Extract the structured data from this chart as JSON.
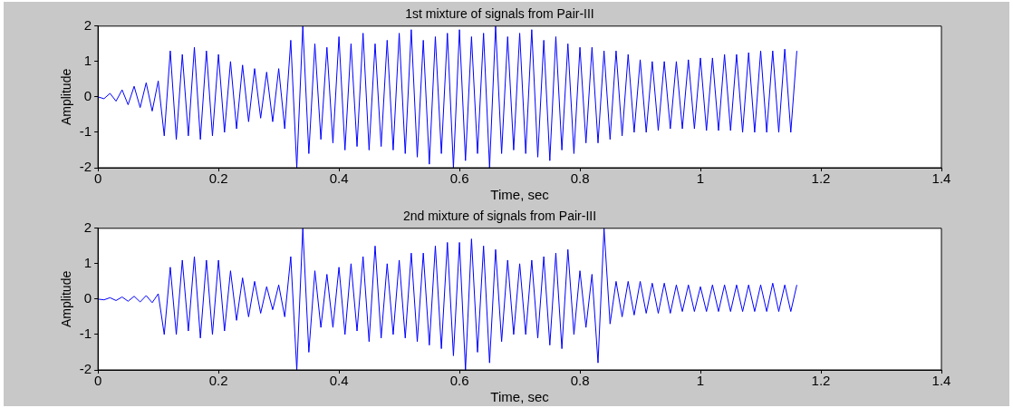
{
  "chart_data": [
    {
      "type": "line",
      "title": "1st mixture of signals from Pair-III",
      "xlabel": "Time, sec",
      "ylabel": "Amplitude",
      "xlim": [
        0,
        1.4
      ],
      "xticks": [
        0,
        0.2,
        0.4,
        0.6,
        0.8,
        1,
        1.2,
        1.4
      ],
      "ylim": [
        -2,
        2
      ],
      "yticks": [
        -2,
        -1,
        0,
        1,
        2
      ],
      "series": [
        {
          "color": "#0000ff",
          "x": [
            0,
            0.01,
            0.02,
            0.03,
            0.04,
            0.05,
            0.06,
            0.07,
            0.08,
            0.09,
            0.1,
            0.11,
            0.12,
            0.13,
            0.14,
            0.15,
            0.16,
            0.17,
            0.18,
            0.19,
            0.2,
            0.21,
            0.22,
            0.23,
            0.24,
            0.25,
            0.26,
            0.27,
            0.28,
            0.29,
            0.3,
            0.31,
            0.32,
            0.33,
            0.34,
            0.35,
            0.36,
            0.37,
            0.38,
            0.39,
            0.4,
            0.41,
            0.42,
            0.43,
            0.44,
            0.45,
            0.46,
            0.47,
            0.48,
            0.49,
            0.5,
            0.51,
            0.52,
            0.53,
            0.54,
            0.55,
            0.56,
            0.57,
            0.58,
            0.59,
            0.6,
            0.61,
            0.62,
            0.63,
            0.64,
            0.65,
            0.66,
            0.67,
            0.68,
            0.69,
            0.7,
            0.71,
            0.72,
            0.73,
            0.74,
            0.75,
            0.76,
            0.77,
            0.78,
            0.79,
            0.8,
            0.81,
            0.82,
            0.83,
            0.84,
            0.85,
            0.86,
            0.87,
            0.88,
            0.89,
            0.9,
            0.91,
            0.92,
            0.93,
            0.94,
            0.95,
            0.96,
            0.97,
            0.98,
            0.99,
            1,
            1.01,
            1.02,
            1.03,
            1.04,
            1.05,
            1.06,
            1.07,
            1.08,
            1.09,
            1.1,
            1.11,
            1.12,
            1.13,
            1.14,
            1.15,
            1.16
          ],
          "values": [
            0,
            -0.05,
            0.1,
            -0.12,
            0.2,
            -0.22,
            0.3,
            -0.3,
            0.4,
            -0.4,
            0.45,
            -1.1,
            1.3,
            -1.2,
            1.2,
            -1.1,
            1.4,
            -1.2,
            1.3,
            -1.1,
            1.2,
            -1,
            1,
            -0.9,
            0.9,
            -0.7,
            0.8,
            -0.6,
            0.7,
            -0.7,
            0.8,
            -0.9,
            1.6,
            -2,
            2,
            -1.6,
            1.5,
            -1.2,
            1.4,
            -1.3,
            1.7,
            -1.5,
            1.5,
            -1.4,
            1.8,
            -1.5,
            1.5,
            -1.4,
            1.6,
            -1.5,
            1.8,
            -1.6,
            1.9,
            -1.7,
            1.6,
            -1.9,
            1.7,
            -1.6,
            1.8,
            -2,
            1.9,
            -1.8,
            1.7,
            -1.6,
            1.8,
            -2,
            2,
            -1.6,
            1.7,
            -1.5,
            1.8,
            -1.6,
            1.9,
            -1.7,
            1.6,
            -1.8,
            1.7,
            -1.5,
            1.5,
            -1.6,
            1.4,
            -1.3,
            1.4,
            -1.3,
            1.3,
            -1.2,
            1.3,
            -1.1,
            1.2,
            -1,
            1.05,
            -1,
            1,
            -0.95,
            1,
            -0.9,
            1,
            -0.9,
            1.05,
            -0.9,
            1.1,
            -0.95,
            1.1,
            -0.95,
            1.2,
            -0.95,
            1.2,
            -1,
            1.25,
            -1,
            1.3,
            -1,
            1.3,
            -1,
            1.35,
            -1,
            1.3
          ]
        }
      ]
    },
    {
      "type": "line",
      "title": "2nd mixture of signals from Pair-III",
      "xlabel": "Time, sec",
      "ylabel": "Amplitude",
      "xlim": [
        0,
        1.4
      ],
      "xticks": [
        0,
        0.2,
        0.4,
        0.6,
        0.8,
        1,
        1.2,
        1.4
      ],
      "ylim": [
        -2,
        2
      ],
      "yticks": [
        -2,
        -1,
        0,
        1,
        2
      ],
      "series": [
        {
          "color": "#0000ff",
          "x": [
            0,
            0.01,
            0.02,
            0.03,
            0.04,
            0.05,
            0.06,
            0.07,
            0.08,
            0.09,
            0.1,
            0.11,
            0.12,
            0.13,
            0.14,
            0.15,
            0.16,
            0.17,
            0.18,
            0.19,
            0.2,
            0.21,
            0.22,
            0.23,
            0.24,
            0.25,
            0.26,
            0.27,
            0.28,
            0.29,
            0.3,
            0.31,
            0.32,
            0.33,
            0.34,
            0.35,
            0.36,
            0.37,
            0.38,
            0.39,
            0.4,
            0.41,
            0.42,
            0.43,
            0.44,
            0.45,
            0.46,
            0.47,
            0.48,
            0.49,
            0.5,
            0.51,
            0.52,
            0.53,
            0.54,
            0.55,
            0.56,
            0.57,
            0.58,
            0.59,
            0.6,
            0.61,
            0.62,
            0.63,
            0.64,
            0.65,
            0.66,
            0.67,
            0.68,
            0.69,
            0.7,
            0.71,
            0.72,
            0.73,
            0.74,
            0.75,
            0.76,
            0.77,
            0.78,
            0.79,
            0.8,
            0.81,
            0.82,
            0.83,
            0.84,
            0.85,
            0.86,
            0.87,
            0.88,
            0.89,
            0.9,
            0.91,
            0.92,
            0.93,
            0.94,
            0.95,
            0.96,
            0.97,
            0.98,
            0.99,
            1,
            1.01,
            1.02,
            1.03,
            1.04,
            1.05,
            1.06,
            1.07,
            1.08,
            1.09,
            1.1,
            1.11,
            1.12,
            1.13,
            1.14,
            1.15,
            1.16
          ],
          "values": [
            0,
            -0.02,
            0.04,
            -0.04,
            0.06,
            -0.06,
            0.08,
            -0.08,
            0.1,
            -0.1,
            0.15,
            -1,
            0.9,
            -1,
            1.1,
            -0.9,
            1.2,
            -1.1,
            1.1,
            -1,
            1.1,
            -0.9,
            0.8,
            -0.6,
            0.6,
            -0.5,
            0.5,
            -0.4,
            0.35,
            -0.3,
            0.4,
            -0.5,
            1.2,
            -2,
            2,
            -1.5,
            0.8,
            -0.8,
            0.7,
            -0.8,
            0.9,
            -1,
            1,
            -0.9,
            1.2,
            -1.2,
            1.5,
            -1.1,
            1,
            -1,
            1.1,
            -1.1,
            1.3,
            -1.2,
            1.3,
            -1.3,
            1.5,
            -1.4,
            1.6,
            -1.6,
            1.6,
            -2,
            1.7,
            -1.5,
            1.5,
            -1.8,
            1.4,
            -1.2,
            1.1,
            -1,
            1,
            -1,
            1.1,
            -1.1,
            1.2,
            -1.3,
            1.3,
            -1.4,
            1.4,
            -1,
            0.8,
            -0.8,
            0.7,
            -1.8,
            2,
            -0.7,
            0.5,
            -0.5,
            0.5,
            -0.45,
            0.5,
            -0.4,
            0.45,
            -0.4,
            0.45,
            -0.4,
            0.4,
            -0.35,
            0.4,
            -0.35,
            0.35,
            -0.35,
            0.4,
            -0.35,
            0.4,
            -0.35,
            0.4,
            -0.35,
            0.4,
            -0.35,
            0.4,
            -0.35,
            0.45,
            -0.35,
            0.4,
            -0.35,
            0.4
          ]
        }
      ]
    }
  ]
}
